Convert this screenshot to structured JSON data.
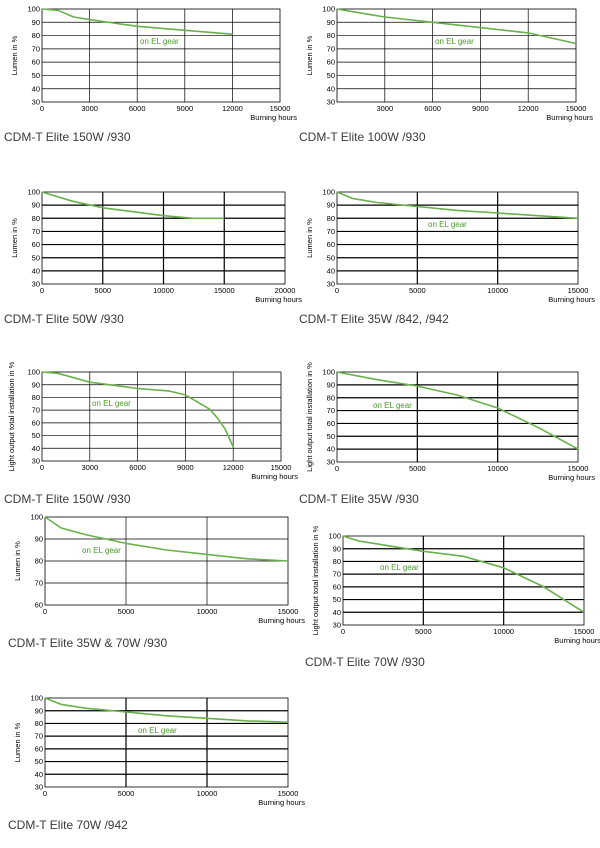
{
  "colors": {
    "curve": "#6ab04c",
    "annotation": "#4a9a2a",
    "grid": "#000000",
    "text": "#000000"
  },
  "chart_data": [
    {
      "caption": "CDM-T Elite 150W /930",
      "type": "line",
      "xlabel": "Burning hours",
      "ylabel": "Lumen in %",
      "xlim": [
        0,
        15000
      ],
      "ylim": [
        30,
        100
      ],
      "xticks": [
        0,
        3000,
        6000,
        9000,
        12000,
        15000
      ],
      "yticks": [
        30,
        40,
        50,
        60,
        70,
        80,
        90,
        100
      ],
      "annotation": "on EL gear",
      "series": [
        {
          "x": [
            0,
            1000,
            2000,
            3000,
            6000,
            9000,
            12000
          ],
          "y": [
            100,
            99,
            94,
            92,
            87,
            84,
            81
          ]
        }
      ]
    },
    {
      "caption": "CDM-T Elite 100W /930",
      "type": "line",
      "xlabel": "Burning hours",
      "ylabel": "Lumen in %",
      "xlim": [
        0,
        15000
      ],
      "ylim": [
        30,
        100
      ],
      "xticks": [
        3000,
        6000,
        9000,
        12000,
        15000
      ],
      "yticks": [
        30,
        40,
        50,
        60,
        70,
        80,
        90,
        100
      ],
      "annotation": "on EL gear",
      "series": [
        {
          "x": [
            0,
            1000,
            3000,
            6000,
            9000,
            12000,
            15000
          ],
          "y": [
            100,
            98,
            94,
            90,
            86,
            82,
            74
          ]
        }
      ]
    },
    {
      "caption": "CDM-T Elite 50W /930",
      "type": "line",
      "xlabel": "Burning hours",
      "ylabel": "Lumen in %",
      "xlim": [
        0,
        20000
      ],
      "ylim": [
        30,
        100
      ],
      "xticks": [
        0,
        5000,
        10000,
        15000,
        20000
      ],
      "yticks": [
        30,
        40,
        50,
        60,
        70,
        80,
        90,
        100
      ],
      "series": [
        {
          "x": [
            0,
            2500,
            5000,
            7500,
            10000,
            12500,
            15000
          ],
          "y": [
            100,
            93,
            88,
            85,
            82,
            80,
            80
          ]
        }
      ]
    },
    {
      "caption": "CDM-T Elite 35W /842, /942",
      "type": "line",
      "xlabel": "Burning hours",
      "ylabel": "Lumen in %",
      "xlim": [
        0,
        15000
      ],
      "ylim": [
        30,
        100
      ],
      "xticks": [
        0,
        5000,
        10000,
        15000
      ],
      "yticks": [
        30,
        40,
        50,
        60,
        70,
        80,
        90,
        100
      ],
      "annotation": "on EL gear",
      "series": [
        {
          "x": [
            0,
            1000,
            2500,
            5000,
            7500,
            10000,
            12500,
            15000
          ],
          "y": [
            100,
            95,
            92,
            89,
            86,
            84,
            82,
            80
          ]
        }
      ]
    },
    {
      "caption": "CDM-T Elite 150W /930",
      "type": "line",
      "xlabel": "Burning hours",
      "ylabel": "Light output total installation in %",
      "xlim": [
        0,
        15000
      ],
      "ylim": [
        30,
        100
      ],
      "xticks": [
        0,
        3000,
        6000,
        9000,
        12000,
        15000
      ],
      "yticks": [
        30,
        40,
        50,
        60,
        70,
        80,
        90,
        100
      ],
      "annotation": "on EL gear",
      "series": [
        {
          "x": [
            0,
            1000,
            3000,
            6000,
            8000,
            9000,
            10500,
            11000,
            11500,
            12000
          ],
          "y": [
            100,
            99,
            92,
            87,
            85,
            82,
            71,
            64,
            55,
            41
          ]
        }
      ]
    },
    {
      "caption": "CDM-T Elite 35W /930",
      "type": "line",
      "xlabel": "Burning hours",
      "ylabel": "Light output total installation in %",
      "xlim": [
        0,
        15000
      ],
      "ylim": [
        30,
        100
      ],
      "xticks": [
        0,
        5000,
        10000,
        15000
      ],
      "yticks": [
        30,
        40,
        50,
        60,
        70,
        80,
        90,
        100
      ],
      "annotation": "on EL gear",
      "series": [
        {
          "x": [
            0,
            2500,
            5000,
            7500,
            10000,
            12500,
            15000
          ],
          "y": [
            100,
            94,
            89,
            82,
            72,
            57,
            40
          ]
        }
      ]
    },
    {
      "caption": "CDM-T Elite 35W & 70W /930",
      "type": "line",
      "xlabel": "Burning hours",
      "ylabel": "Lumen in %",
      "xlim": [
        0,
        15000
      ],
      "ylim": [
        60,
        100
      ],
      "xticks": [
        0,
        5000,
        10000,
        15000
      ],
      "yticks": [
        60,
        70,
        80,
        90,
        100
      ],
      "annotation": "on EL gear",
      "series": [
        {
          "x": [
            0,
            1000,
            2500,
            5000,
            7500,
            10000,
            12500,
            15000
          ],
          "y": [
            100,
            95,
            92,
            88,
            85,
            83,
            81,
            80
          ]
        }
      ]
    },
    {
      "caption": "CDM-T Elite 70W /930",
      "type": "line",
      "xlabel": "Burning hours",
      "ylabel": "Light output total installation in %",
      "xlim": [
        0,
        15000
      ],
      "ylim": [
        30,
        100
      ],
      "xticks": [
        0,
        5000,
        10000,
        15000
      ],
      "yticks": [
        30,
        40,
        50,
        60,
        70,
        80,
        90,
        100
      ],
      "annotation": "on EL gear",
      "series": [
        {
          "x": [
            0,
            1000,
            2500,
            5000,
            7500,
            10000,
            12500,
            15000
          ],
          "y": [
            100,
            96,
            93,
            88,
            84,
            75,
            60,
            40
          ]
        }
      ]
    },
    {
      "caption": "CDM-T Elite 70W /942",
      "type": "line",
      "xlabel": "Burning hours",
      "ylabel": "Lumen in %",
      "xlim": [
        0,
        15000
      ],
      "ylim": [
        30,
        100
      ],
      "xticks": [
        0,
        5000,
        10000,
        15000
      ],
      "yticks": [
        30,
        40,
        50,
        60,
        70,
        80,
        90,
        100
      ],
      "annotation": "on EL gear",
      "series": [
        {
          "x": [
            0,
            1000,
            2500,
            5000,
            7500,
            10000,
            12500,
            15000
          ],
          "y": [
            100,
            95,
            92,
            89,
            86,
            84,
            82,
            81
          ]
        }
      ]
    }
  ]
}
